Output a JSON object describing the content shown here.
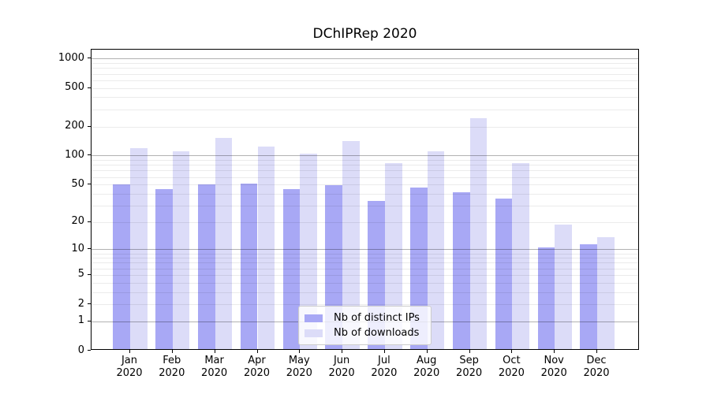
{
  "chart_data": {
    "type": "bar",
    "title": "DChIPRep 2020",
    "categories": [
      {
        "month": "Jan",
        "year": "2020"
      },
      {
        "month": "Feb",
        "year": "2020"
      },
      {
        "month": "Mar",
        "year": "2020"
      },
      {
        "month": "Apr",
        "year": "2020"
      },
      {
        "month": "May",
        "year": "2020"
      },
      {
        "month": "Jun",
        "year": "2020"
      },
      {
        "month": "Jul",
        "year": "2020"
      },
      {
        "month": "Aug",
        "year": "2020"
      },
      {
        "month": "Sep",
        "year": "2020"
      },
      {
        "month": "Oct",
        "year": "2020"
      },
      {
        "month": "Nov",
        "year": "2020"
      },
      {
        "month": "Dec",
        "year": "2020"
      }
    ],
    "series": [
      {
        "name": "Nb of distinct IPs",
        "color": "#a8a8f5",
        "values": [
          48,
          43,
          48,
          49,
          43,
          47,
          32,
          45,
          40,
          34,
          10,
          11
        ]
      },
      {
        "name": "Nb of downloads",
        "color": "#dcdcf8",
        "values": [
          114,
          107,
          148,
          119,
          100,
          136,
          80,
          107,
          233,
          81,
          18,
          13
        ]
      }
    ],
    "y_axis": {
      "scale": "log1p",
      "tick_labels": [
        0,
        1,
        2,
        5,
        10,
        20,
        50,
        100,
        200,
        500,
        1000
      ],
      "major_gridlines": [
        1,
        10,
        100,
        1000
      ],
      "ylim": [
        0,
        1236
      ],
      "grid": true
    },
    "legend": {
      "position": "lower-center",
      "items": [
        "Nb of distinct IPs",
        "Nb of downloads"
      ]
    }
  }
}
